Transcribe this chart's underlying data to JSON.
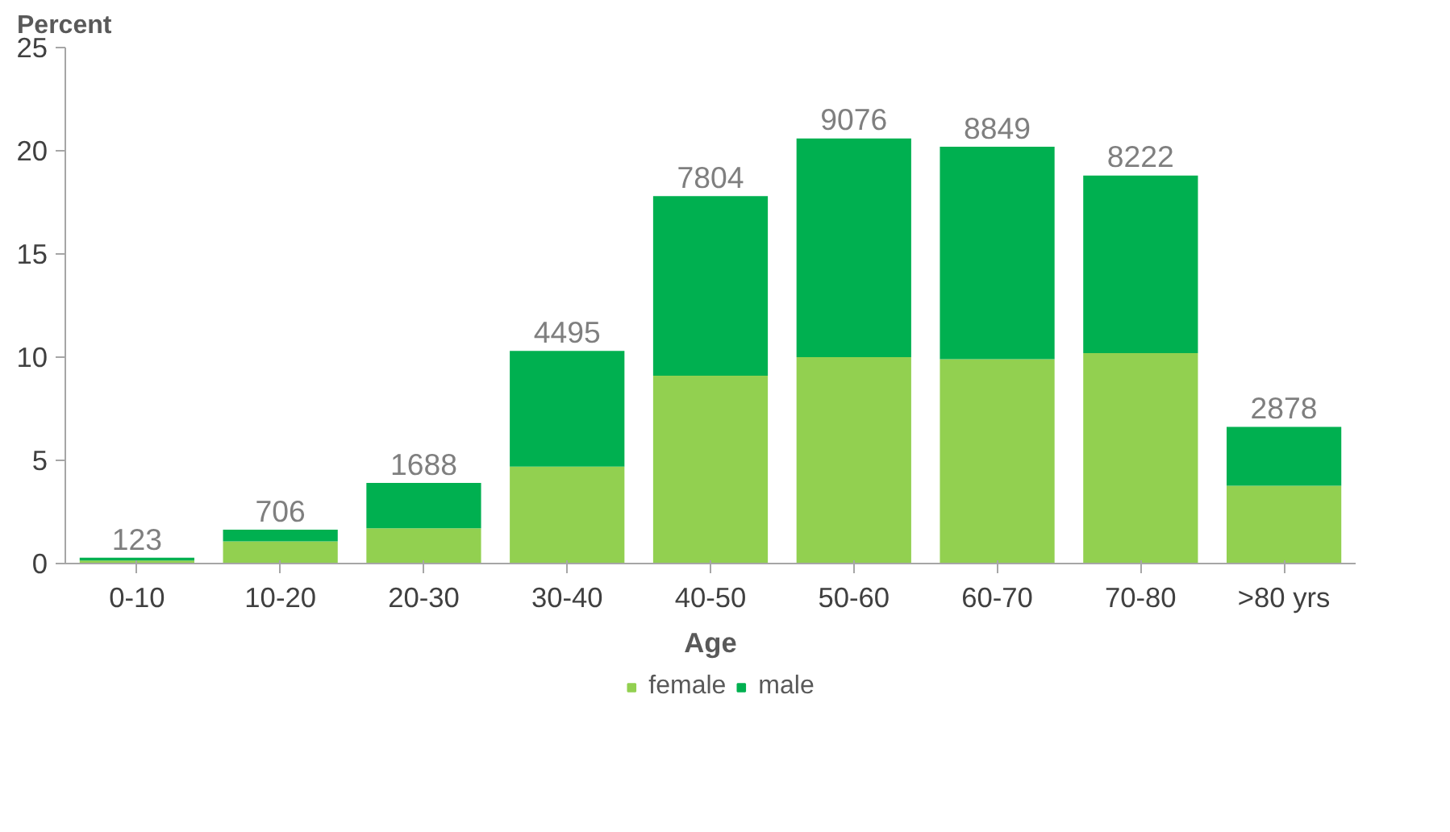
{
  "chart_data": {
    "type": "bar",
    "stacked": true,
    "xlabel": "Age",
    "ylabel": "Percent",
    "categories": [
      "0-10",
      "10-20",
      "20-30",
      "30-40",
      "40-50",
      "50-60",
      "60-70",
      "70-80",
      ">80 yrs"
    ],
    "series": [
      {
        "name": "female",
        "color": "#92d050",
        "values": [
          0.15,
          1.07,
          1.71,
          4.7,
          9.1,
          10.0,
          9.9,
          10.2,
          3.77
        ]
      },
      {
        "name": "male",
        "color": "#00b050",
        "values": [
          0.13,
          0.57,
          2.2,
          5.6,
          8.7,
          10.6,
          10.3,
          8.6,
          2.85
        ]
      }
    ],
    "annotations": [
      {
        "text": "123",
        "x": "0-10",
        "y": 0.28
      },
      {
        "text": "706",
        "x": "10-20",
        "y": 1.64
      },
      {
        "text": "1688",
        "x": "20-30",
        "y": 3.91
      },
      {
        "text": "4495",
        "x": "30-40",
        "y": 10.3
      },
      {
        "text": "7804",
        "x": "40-50",
        "y": 17.8
      },
      {
        "text": "9076",
        "x": "50-60",
        "y": 20.6
      },
      {
        "text": "8849",
        "x": "60-70",
        "y": 20.2
      },
      {
        "text": "8222",
        "x": "70-80",
        "y": 18.8
      },
      {
        "text": "2878",
        "x": ">80 yrs",
        "y": 6.62
      }
    ],
    "ylim": [
      0,
      25
    ],
    "yticks": [
      0,
      5,
      10,
      15,
      20,
      25
    ],
    "legend": "bottom"
  }
}
